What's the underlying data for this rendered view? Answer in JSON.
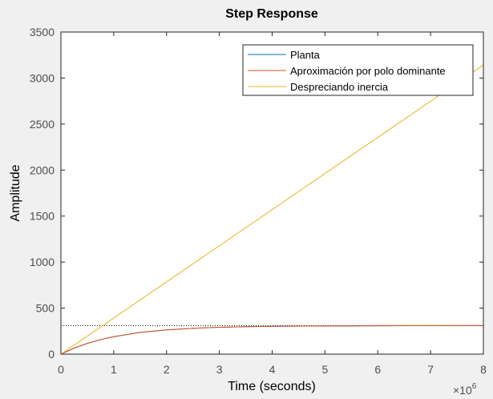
{
  "chart_data": {
    "type": "line",
    "title": "Step Response",
    "xlabel": "Time (seconds)",
    "ylabel": "Amplitude",
    "x_exponent_base": "×10",
    "x_exponent_power": "6",
    "xlim": [
      0,
      8
    ],
    "ylim": [
      0,
      3500
    ],
    "x_ticks": [
      0,
      1,
      2,
      3,
      4,
      5,
      6,
      7,
      8
    ],
    "y_ticks": [
      0,
      500,
      1000,
      1500,
      2000,
      2500,
      3000,
      3500
    ],
    "grid": false,
    "legend_position": "top-right",
    "steady_state_reference": 310,
    "series": [
      {
        "name": "Planta",
        "color": "#0072BD",
        "x": [
          0,
          0.25,
          0.5,
          0.75,
          1,
          1.5,
          2,
          2.5,
          3,
          3.5,
          4,
          5,
          6,
          7,
          8
        ],
        "y": [
          0,
          65,
          117,
          158,
          190,
          236,
          264,
          281,
          292,
          298,
          302,
          306,
          308,
          309,
          310
        ]
      },
      {
        "name": "Aproximación por polo dominante",
        "color": "#D95319",
        "x": [
          0,
          0.25,
          0.5,
          0.75,
          1,
          1.5,
          2,
          2.5,
          3,
          3.5,
          4,
          5,
          6,
          7,
          8
        ],
        "y": [
          0,
          65,
          117,
          158,
          190,
          236,
          264,
          281,
          292,
          298,
          302,
          306,
          308,
          309,
          310
        ]
      },
      {
        "name": "Despreciando inercia",
        "color": "#EDB120",
        "x": [
          0,
          8
        ],
        "y": [
          0,
          3140
        ]
      }
    ]
  }
}
